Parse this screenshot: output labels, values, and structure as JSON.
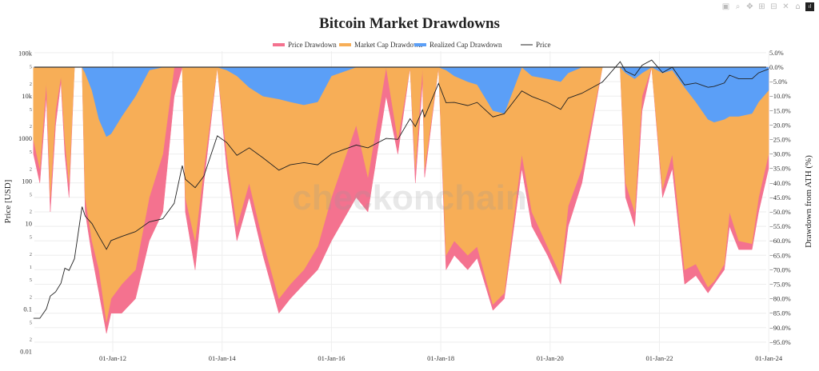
{
  "modebar": {
    "icons": [
      "camera-icon",
      "zoom-icon",
      "pan-icon",
      "zoom-in-icon",
      "zoom-out-icon",
      "autoscale-icon",
      "home-icon",
      "plotly-logo-icon"
    ]
  },
  "chart_data": {
    "type": "area",
    "title": "Bitcoin Market Drawdowns",
    "watermark": "checkonchain",
    "legend": {
      "placement": "top-center",
      "entries": [
        "Price Drawdown",
        "Market Cap Drawdown",
        "Realized Cap Drawdown",
        "Price"
      ]
    },
    "colors": {
      "price_drawdown": "#f4728f",
      "market_cap_drawdown": "#f7ae57",
      "realized_cap_drawdown": "#5b9ff7",
      "price": "#222222"
    },
    "xaxis": {
      "ticks": [
        "01-Jan-12",
        "01-Jan-14",
        "01-Jan-16",
        "01-Jan-18",
        "01-Jan-20",
        "01-Jan-22",
        "01-Jan-24"
      ],
      "tick_dates": [
        "2012-01-01",
        "2014-01-01",
        "2016-01-01",
        "2018-01-01",
        "2020-01-01",
        "2022-01-01",
        "2024-01-01"
      ],
      "range": [
        "2010-07-18",
        "2024-01-01"
      ],
      "grid": true
    },
    "yaxis_left": {
      "label": "Price [USD]",
      "type": "log",
      "range": [
        0.01,
        100000
      ],
      "ticks": [
        "0.01",
        "2",
        "5",
        "0.1",
        "2",
        "5",
        "1",
        "2",
        "5",
        "10",
        "2",
        "5",
        "100",
        "2",
        "5",
        "1000",
        "2",
        "5",
        "10k",
        "2",
        "5",
        "100k"
      ],
      "tick_values": [
        0.01,
        0.02,
        0.05,
        0.1,
        0.2,
        0.5,
        1,
        2,
        5,
        10,
        20,
        50,
        100,
        200,
        500,
        1000,
        2000,
        5000,
        10000,
        20000,
        50000,
        100000
      ]
    },
    "yaxis_right": {
      "label": "Drawdown from ATH (%)",
      "range": [
        -97,
        5
      ],
      "ticks": [
        "5.0%",
        "0.0%",
        "−5.0%",
        "−10.0%",
        "−15.0%",
        "−20.0%",
        "−25.0%",
        "−30.0%",
        "−35.0%",
        "−40.0%",
        "−45.0%",
        "−50.0%",
        "−55.0%",
        "−60.0%",
        "−65.0%",
        "−70.0%",
        "−75.0%",
        "−80.0%",
        "−85.0%",
        "−90.0%",
        "−95.0%"
      ],
      "tick_values": [
        5,
        0,
        -5,
        -10,
        -15,
        -20,
        -25,
        -30,
        -35,
        -40,
        -45,
        -50,
        -55,
        -60,
        -65,
        -70,
        -75,
        -80,
        -85,
        -90,
        -95
      ],
      "grid": true
    },
    "x": [
      "2010-07-20",
      "2010-09-01",
      "2010-10-15",
      "2010-11-10",
      "2010-12-15",
      "2011-01-20",
      "2011-02-15",
      "2011-03-15",
      "2011-04-20",
      "2011-06-10",
      "2011-07-01",
      "2011-08-15",
      "2011-10-01",
      "2011-11-20",
      "2011-12-20",
      "2012-03-01",
      "2012-06-01",
      "2012-09-01",
      "2012-12-01",
      "2013-02-15",
      "2013-04-10",
      "2013-05-01",
      "2013-07-05",
      "2013-09-01",
      "2013-11-30",
      "2014-02-01",
      "2014-04-10",
      "2014-07-01",
      "2014-10-01",
      "2015-01-15",
      "2015-04-01",
      "2015-07-01",
      "2015-10-01",
      "2016-01-01",
      "2016-06-15",
      "2016-09-01",
      "2017-01-01",
      "2017-03-20",
      "2017-06-10",
      "2017-07-15",
      "2017-09-01",
      "2017-09-15",
      "2017-12-17",
      "2018-02-05",
      "2018-04-01",
      "2018-06-30",
      "2018-09-01",
      "2018-12-15",
      "2019-03-01",
      "2019-06-26",
      "2019-09-01",
      "2019-12-15",
      "2020-03-12",
      "2020-05-01",
      "2020-08-01",
      "2020-12-16",
      "2021-04-14",
      "2021-05-20",
      "2021-07-20",
      "2021-09-07",
      "2021-11-10",
      "2022-01-22",
      "2022-03-28",
      "2022-06-18",
      "2022-09-01",
      "2022-11-21",
      "2023-01-01",
      "2023-03-10",
      "2023-04-14",
      "2023-06-15",
      "2023-09-11",
      "2023-10-25",
      "2023-12-31"
    ],
    "series": [
      {
        "name": "Price Drawdown",
        "axis": "right",
        "values": [
          -30,
          -40,
          -10,
          -50,
          -20,
          -5,
          -30,
          -45,
          0,
          0,
          -50,
          -65,
          -78,
          -92,
          -85,
          -85,
          -80,
          -60,
          -50,
          -10,
          0,
          -50,
          -70,
          -40,
          0,
          -35,
          -60,
          -45,
          -65,
          -85,
          -80,
          -75,
          -70,
          -60,
          -45,
          -50,
          -10,
          -30,
          0,
          -40,
          -5,
          -38,
          0,
          -70,
          -65,
          -70,
          -66,
          -84,
          -80,
          -35,
          -55,
          -65,
          -75,
          -55,
          -40,
          0,
          0,
          -45,
          -55,
          -15,
          0,
          -45,
          -35,
          -75,
          -72,
          -78,
          -75,
          -70,
          -55,
          -63,
          -63,
          -50,
          -35
        ]
      },
      {
        "name": "Market Cap Drawdown",
        "axis": "right",
        "values": [
          -25,
          -35,
          -5,
          -45,
          -15,
          -3,
          -25,
          -40,
          0,
          0,
          -45,
          -60,
          -70,
          -88,
          -80,
          -75,
          -70,
          -45,
          -30,
          0,
          0,
          -45,
          -60,
          -35,
          0,
          -30,
          -55,
          -40,
          -60,
          -80,
          -75,
          -70,
          -62,
          -45,
          -20,
          -38,
          0,
          -25,
          0,
          -35,
          0,
          -35,
          0,
          -65,
          -60,
          -65,
          -62,
          -82,
          -78,
          -30,
          -50,
          -62,
          -72,
          -48,
          -35,
          0,
          0,
          -40,
          -50,
          -10,
          0,
          -42,
          -30,
          -70,
          -68,
          -76,
          -74,
          -68,
          -50,
          -60,
          -61,
          -45,
          -30
        ]
      },
      {
        "name": "Realized Cap Drawdown",
        "axis": "right",
        "values": [
          0,
          0,
          0,
          0,
          0,
          0,
          0,
          0,
          0,
          0,
          -2,
          -8,
          -18,
          -24,
          -23,
          -17,
          -10,
          -1,
          0,
          0,
          0,
          0,
          0,
          0,
          0,
          -1,
          -3,
          -7,
          -10,
          -11,
          -12,
          -13,
          -12,
          -3,
          0,
          0,
          0,
          0,
          0,
          0,
          0,
          0,
          0,
          -1,
          -3,
          -5,
          -6,
          -15,
          -16,
          0,
          -3,
          -4,
          -5,
          -2,
          0,
          0,
          0,
          -2,
          -4,
          -2,
          0,
          -2,
          -1,
          -7,
          -12,
          -18,
          -19,
          -18,
          -17,
          -17,
          -16,
          -12,
          -8
        ]
      },
      {
        "name": "Price",
        "axis": "left",
        "values": [
          0.06,
          0.06,
          0.1,
          0.2,
          0.25,
          0.4,
          0.9,
          0.8,
          1.5,
          25,
          15,
          10,
          5,
          2.5,
          4,
          5,
          6.5,
          11,
          13,
          30,
          230,
          110,
          70,
          130,
          1150,
          800,
          400,
          600,
          350,
          180,
          240,
          270,
          240,
          430,
          700,
          600,
          1000,
          950,
          2900,
          1900,
          4700,
          3200,
          19500,
          6900,
          7000,
          5900,
          7000,
          3200,
          3800,
          13000,
          9600,
          7000,
          4800,
          8800,
          11500,
          21000,
          63000,
          38000,
          30000,
          52000,
          69000,
          35000,
          47000,
          18000,
          20000,
          15800,
          16600,
          20000,
          30500,
          25000,
          25000,
          34500,
          42500
        ]
      }
    ]
  }
}
